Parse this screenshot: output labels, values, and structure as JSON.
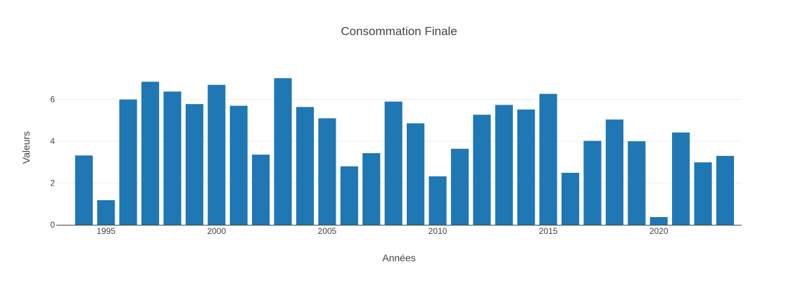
{
  "chart_data": {
    "type": "bar",
    "title": "Consommation Finale",
    "xlabel": "Années",
    "ylabel": "Valeurs",
    "x": [
      1994,
      1995,
      1996,
      1997,
      1998,
      1999,
      2000,
      2001,
      2002,
      2003,
      2004,
      2005,
      2006,
      2007,
      2008,
      2009,
      2010,
      2011,
      2012,
      2013,
      2014,
      2015,
      2016,
      2017,
      2018,
      2019,
      2020,
      2021,
      2022,
      2023
    ],
    "values": [
      3.32,
      1.18,
      6.0,
      6.85,
      6.38,
      5.78,
      6.7,
      5.7,
      3.36,
      7.02,
      5.64,
      5.1,
      2.8,
      3.43,
      5.9,
      4.86,
      2.32,
      3.64,
      5.27,
      5.74,
      5.52,
      6.27,
      2.49,
      4.02,
      5.04,
      4.0,
      0.37,
      4.42,
      2.99,
      3.3
    ],
    "xlim": [
      1992.75,
      2023.75
    ],
    "ylim": [
      0,
      7.4
    ],
    "x_ticks": [
      1995,
      2000,
      2005,
      2010,
      2015,
      2020
    ],
    "x_tick_labels": [
      "1995",
      "2000",
      "2005",
      "2010",
      "2015",
      "2020"
    ],
    "y_ticks": [
      0,
      2,
      4,
      6
    ],
    "y_tick_labels": [
      "0",
      "2",
      "4",
      "6"
    ],
    "grid": true,
    "legend": "none",
    "bar_color": "#1f77b4"
  }
}
